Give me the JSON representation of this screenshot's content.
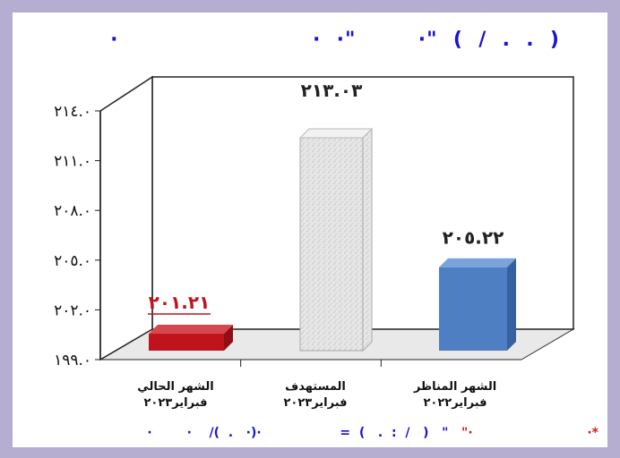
{
  "header": {
    "title": "(  .  .  /  )  \"·        \"·  ·                         ·"
  },
  "chart_data": {
    "type": "bar",
    "categories": [
      [
        "الشهر الحالي",
        "فبراير٢٠٢٣"
      ],
      [
        "المستهدف",
        "فبراير٢٠٢٣"
      ],
      [
        "الشهر المناظر",
        "فبراير٢٠٢٢"
      ]
    ],
    "values": [
      201.21,
      213.03,
      205.22
    ],
    "value_labels": [
      "٢٠١.٢١",
      "٢١٣.٠٣",
      "٢٠٥.٢٢"
    ],
    "ylim": [
      199.0,
      214.0
    ],
    "yticks": [
      199.0,
      202.0,
      205.0,
      208.0,
      211.0,
      214.0
    ],
    "ytick_labels": [
      "١٩٩.٠",
      "٢٠٢.٠",
      "٢٠٥.٠",
      "٢٠٨.٠",
      "٢١١.٠",
      "٢١٤.٠"
    ],
    "colors": [
      "#c0141c",
      "#dcdcdc",
      "#4f7fc3"
    ],
    "label_colors": [
      "#c0141c",
      "#222222",
      "#222222"
    ],
    "bar_style": "3d",
    "grid": false
  },
  "footer": {
    "blue_text": "·        ·    /(  .   ·)·                  =  (   .  :  /   )   \"",
    "red_text": "\"·",
    "mark": "·*"
  }
}
